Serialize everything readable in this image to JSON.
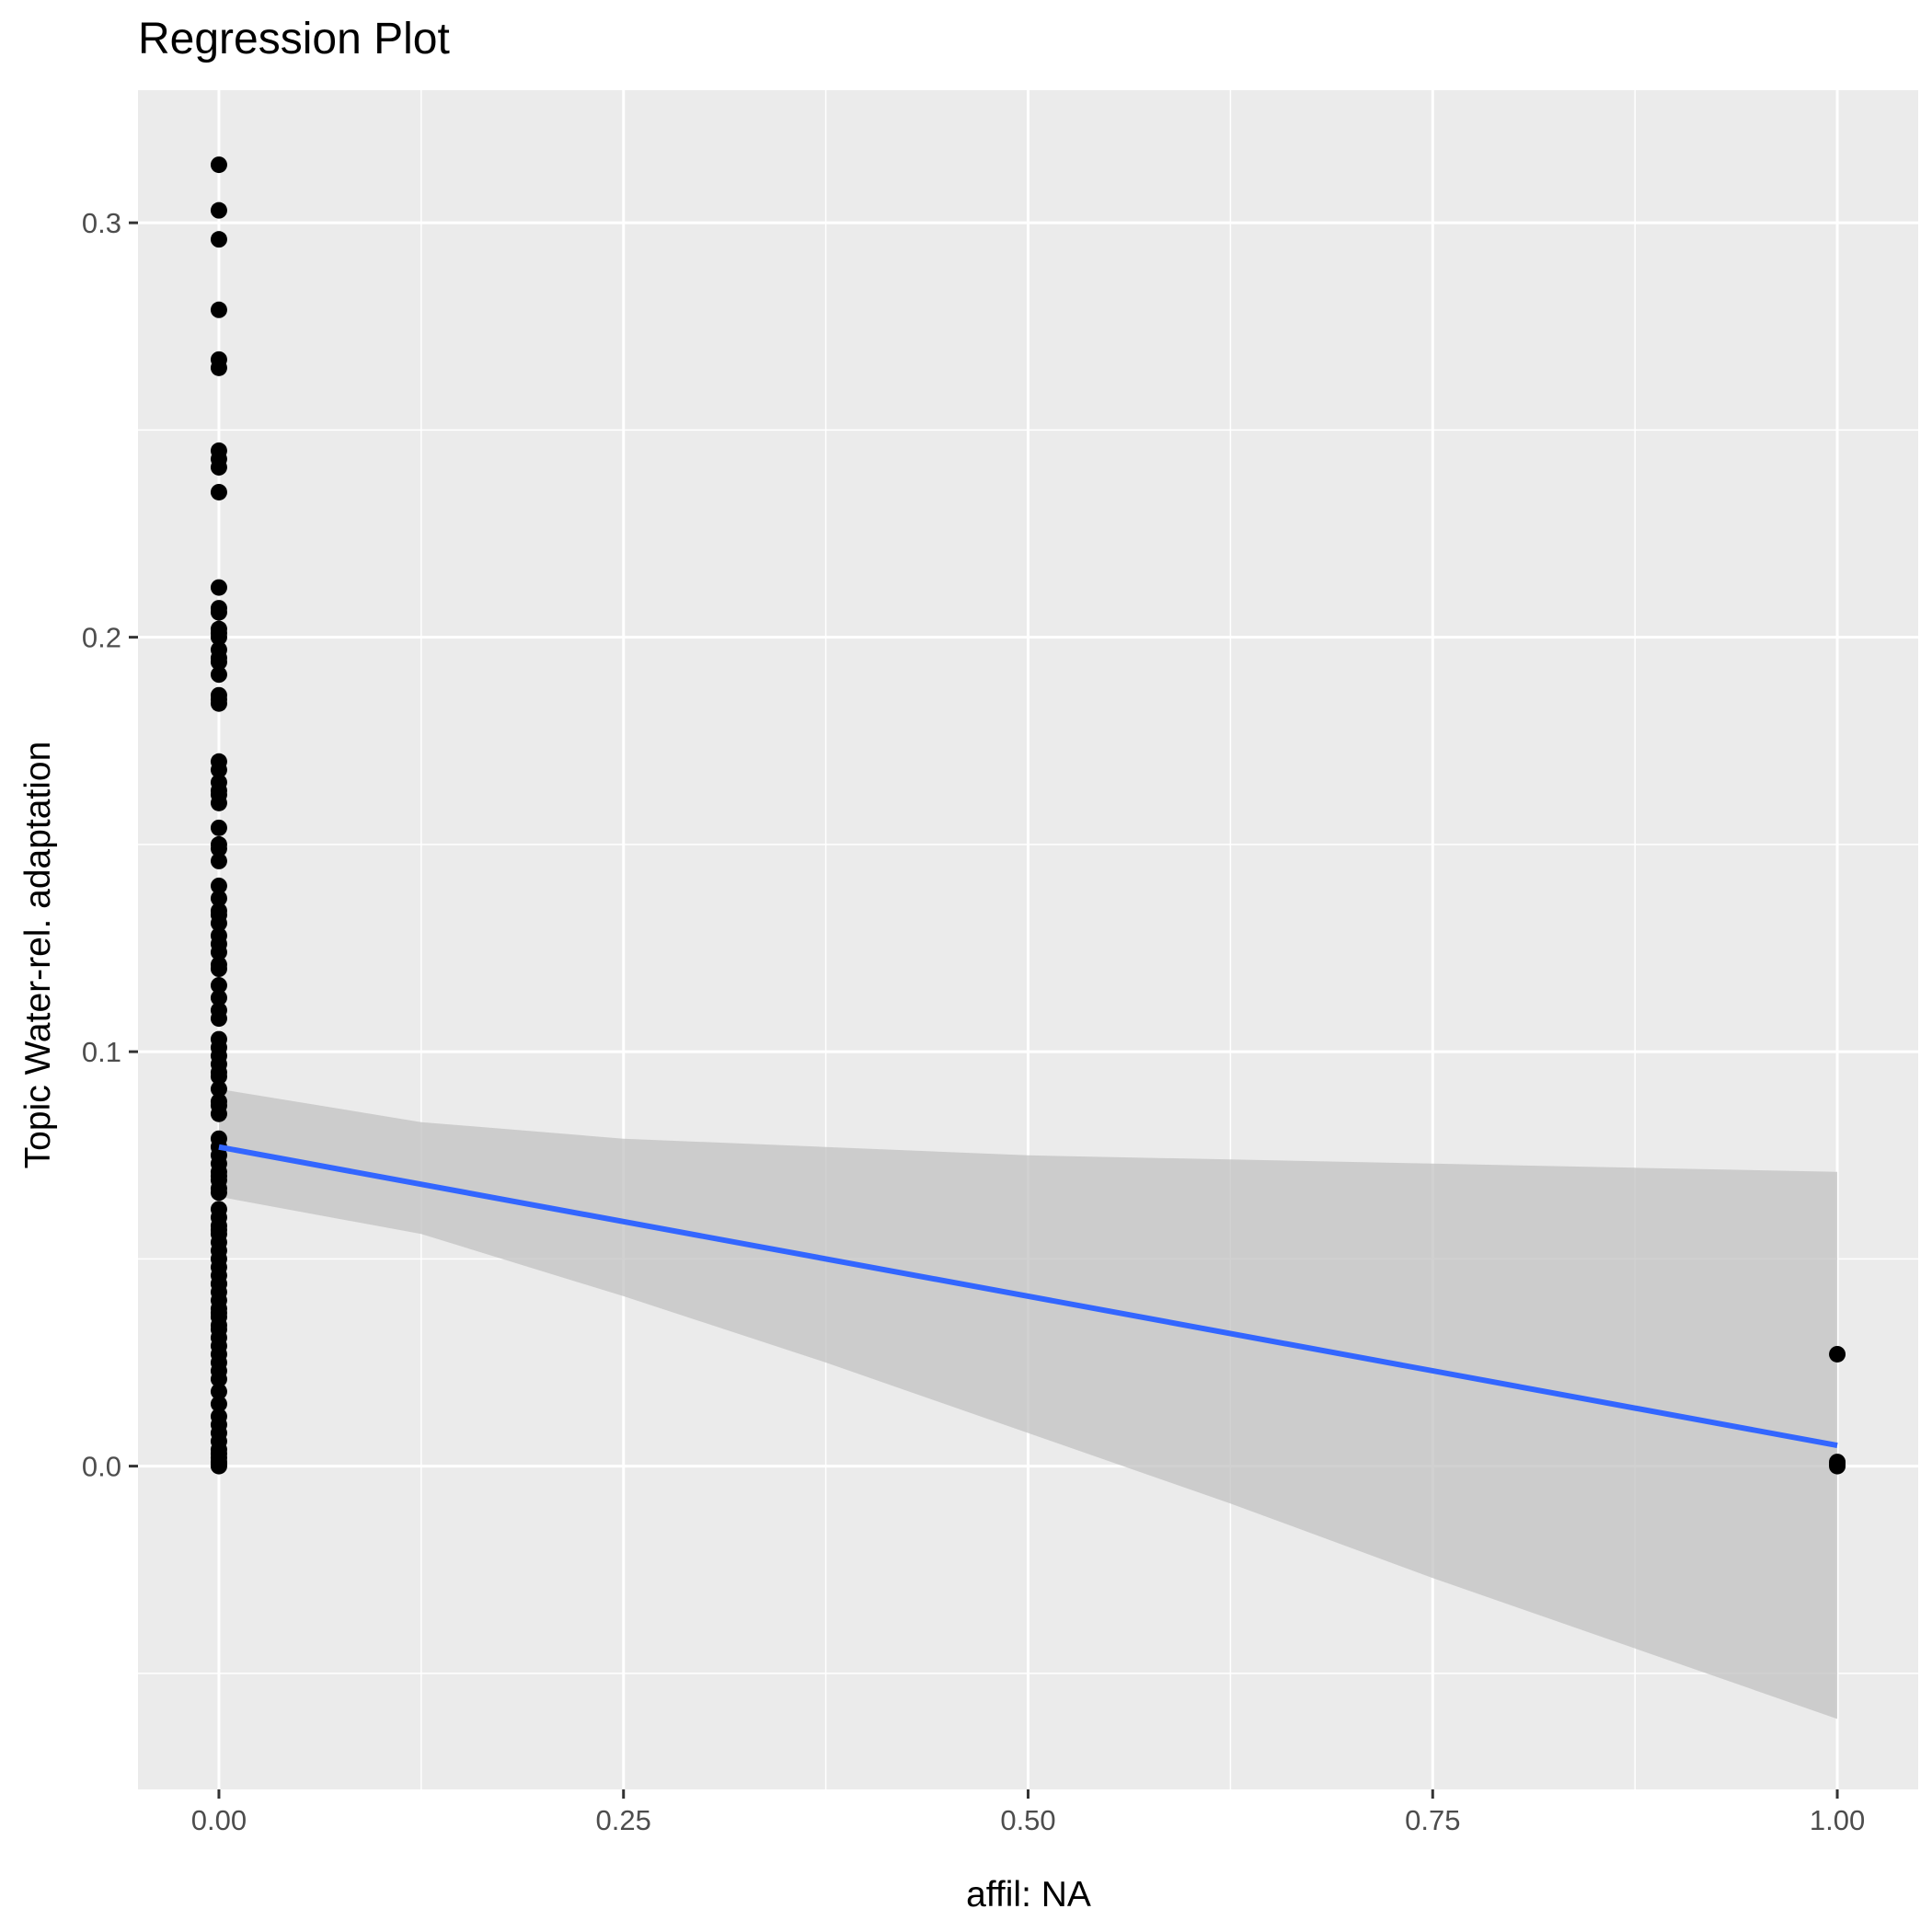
{
  "chart_data": {
    "type": "scatter",
    "title": "Regression Plot",
    "xlabel": "affil: NA",
    "ylabel": "Topic Water-rel. adaptation",
    "xlim": [
      -0.05,
      1.05
    ],
    "ylim": [
      -0.078,
      0.332
    ],
    "x_ticks": [
      {
        "value": 0.0,
        "label": "0.00"
      },
      {
        "value": 0.25,
        "label": "0.25"
      },
      {
        "value": 0.5,
        "label": "0.50"
      },
      {
        "value": 0.75,
        "label": "0.75"
      },
      {
        "value": 1.0,
        "label": "1.00"
      }
    ],
    "y_ticks": [
      {
        "value": 0.0,
        "label": "0.0"
      },
      {
        "value": 0.1,
        "label": "0.1"
      },
      {
        "value": 0.2,
        "label": "0.2"
      },
      {
        "value": 0.3,
        "label": "0.3"
      }
    ],
    "grid": true,
    "colors": {
      "panel": "#ebebeb",
      "grid": "#ffffff",
      "points": "#000000",
      "fit_line": "#3366ff",
      "ribbon": "#c2c2c2"
    },
    "series": [
      {
        "type": "scatter",
        "x": [
          0,
          0,
          0,
          0,
          0,
          0,
          0,
          0,
          0,
          0,
          0,
          0,
          0,
          0,
          0,
          0,
          0,
          0,
          0,
          0,
          0,
          0,
          0,
          0,
          0,
          0,
          0,
          0,
          0,
          0,
          0,
          0,
          0,
          0,
          0,
          0,
          0,
          0,
          0,
          0,
          0,
          0,
          0,
          0,
          0,
          0,
          0,
          0,
          0,
          0,
          0,
          0,
          0,
          0,
          0,
          0,
          0,
          0,
          0,
          0,
          0,
          0,
          0,
          0,
          0,
          0,
          0,
          0,
          0,
          0,
          0,
          0,
          0,
          0,
          0,
          0,
          0,
          0,
          0,
          0,
          0,
          0,
          0,
          0,
          0,
          0,
          0,
          0,
          0,
          0,
          0,
          0,
          0,
          0,
          0,
          0,
          0,
          0,
          0,
          0,
          0,
          0,
          0,
          1,
          1,
          1,
          1
        ],
        "y": [
          0.314,
          0.303,
          0.296,
          0.279,
          0.267,
          0.265,
          0.245,
          0.243,
          0.241,
          0.235,
          0.212,
          0.207,
          0.206,
          0.202,
          0.2,
          0.197,
          0.194,
          0.191,
          0.186,
          0.184,
          0.17,
          0.168,
          0.165,
          0.162,
          0.16,
          0.154,
          0.149,
          0.146,
          0.14,
          0.137,
          0.134,
          0.131,
          0.128,
          0.124,
          0.121,
          0.116,
          0.113,
          0.11,
          0.103,
          0.101,
          0.099,
          0.097,
          0.094,
          0.091,
          0.087,
          0.085,
          0.079,
          0.077,
          0.075,
          0.073,
          0.071,
          0.069,
          0.067,
          0.066,
          0.058,
          0.056,
          0.054,
          0.052,
          0.05,
          0.048,
          0.046,
          0.044,
          0.042,
          0.04,
          0.038,
          0.034,
          0.031,
          0.029,
          0.027,
          0.025,
          0.018,
          0.012,
          0.008,
          0.006,
          0.003,
          0.001,
          0.0,
          0.062,
          0.06,
          0.036,
          0.033,
          0.021,
          0.015,
          0.01,
          0.004,
          0.002,
          0.0005,
          0.07,
          0.088,
          0.095,
          0.108,
          0.12,
          0.126,
          0.133,
          0.15,
          0.163,
          0.185,
          0.195,
          0.201,
          0.037,
          0.023,
          0.044,
          0.057,
          0.027,
          0.001,
          0.0005,
          0.0
        ],
        "y_ordered_note": ""
      },
      {
        "type": "line",
        "x": [
          0,
          1
        ],
        "y": [
          0.077,
          0.005
        ]
      },
      {
        "type": "area",
        "x": [
          0,
          0.125,
          0.25,
          0.375,
          0.5,
          0.625,
          0.75,
          0.875,
          1.0
        ],
        "y_upper": [
          0.091,
          0.083,
          0.079,
          0.077,
          0.075,
          0.074,
          0.073,
          0.072,
          0.071
        ],
        "y_lower": [
          0.065,
          0.056,
          0.041,
          0.025,
          0.008,
          -0.009,
          -0.027,
          -0.044,
          -0.061
        ]
      }
    ]
  }
}
